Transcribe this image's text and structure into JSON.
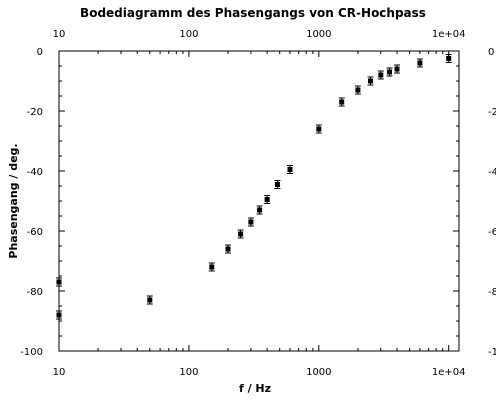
{
  "chart_data": {
    "type": "scatter",
    "title": "Bodediagramm des Phasengangs von CR-Hochpass",
    "xlabel": "f / Hz",
    "ylabel": "Phasengang / deg.",
    "xscale": "log",
    "xlim": [
      10,
      12000
    ],
    "ylim": [
      -100,
      0
    ],
    "x_ticks": [
      {
        "value": 10,
        "label": "10"
      },
      {
        "value": 100,
        "label": "100"
      },
      {
        "value": 1000,
        "label": "1000"
      },
      {
        "value": 10000,
        "label": "1e+04"
      }
    ],
    "y_ticks": [
      {
        "value": 0,
        "label": "0"
      },
      {
        "value": -20,
        "label": "-20"
      },
      {
        "value": -40,
        "label": "-40"
      },
      {
        "value": -60,
        "label": "-60"
      },
      {
        "value": -80,
        "label": "-80"
      },
      {
        "value": -100,
        "label": "-100"
      }
    ],
    "mirror_axes": true,
    "grid": false,
    "marker": "filled-square with error bars",
    "series": [
      {
        "color": "#000000",
        "points": [
          {
            "x": 10,
            "y": -77
          },
          {
            "x": 10,
            "y": -88
          },
          {
            "x": 50,
            "y": -83
          },
          {
            "x": 150,
            "y": -72
          },
          {
            "x": 200,
            "y": -66
          },
          {
            "x": 250,
            "y": -61
          },
          {
            "x": 300,
            "y": -57
          },
          {
            "x": 350,
            "y": -53
          },
          {
            "x": 400,
            "y": -49.5
          },
          {
            "x": 480,
            "y": -44.5
          },
          {
            "x": 600,
            "y": -39.5
          },
          {
            "x": 1000,
            "y": -26
          },
          {
            "x": 1500,
            "y": -17
          },
          {
            "x": 2000,
            "y": -13
          },
          {
            "x": 2500,
            "y": -10
          },
          {
            "x": 3000,
            "y": -8
          },
          {
            "x": 3500,
            "y": -7
          },
          {
            "x": 4000,
            "y": -6
          },
          {
            "x": 6000,
            "y": -4
          },
          {
            "x": 10000,
            "y": -2.5
          }
        ]
      }
    ]
  }
}
